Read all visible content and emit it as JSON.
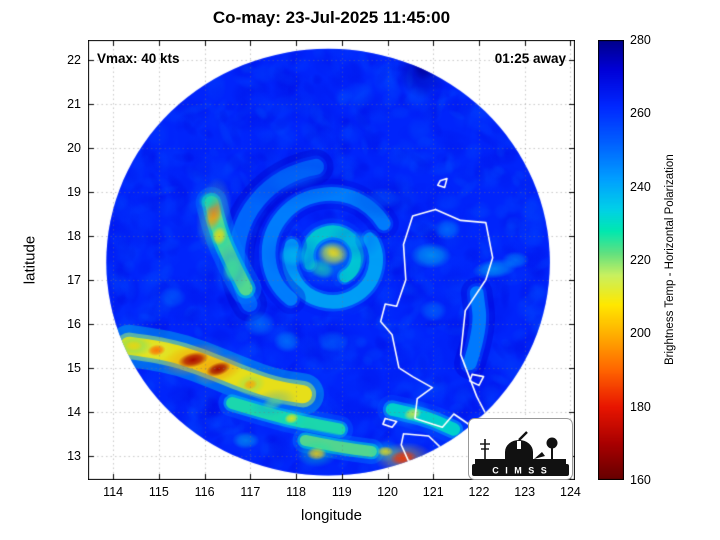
{
  "title": "Co-may: 23-Jul-2025 11:45:00",
  "annotations": {
    "vmax": "Vmax: 40 kts",
    "eta": "01:25 away"
  },
  "axes": {
    "xlabel": "longitude",
    "ylabel": "latitude",
    "xticks": [
      114,
      115,
      116,
      117,
      118,
      119,
      120,
      121,
      122,
      123,
      124
    ],
    "yticks": [
      13,
      14,
      15,
      16,
      17,
      18,
      19,
      20,
      21,
      22
    ],
    "xlim": [
      113.45,
      124.1
    ],
    "ylim": [
      12.45,
      22.45
    ]
  },
  "colorbar": {
    "label": "Brightness Temp - Horizontal Polarization",
    "ticks": [
      160,
      180,
      200,
      220,
      240,
      260,
      280
    ],
    "min": 160,
    "max": 280
  },
  "colormap": [
    [
      160,
      "#650000"
    ],
    [
      170,
      "#a80000"
    ],
    [
      180,
      "#e81500"
    ],
    [
      190,
      "#ff6400"
    ],
    [
      200,
      "#ffb000"
    ],
    [
      208,
      "#ffe800"
    ],
    [
      216,
      "#c8f060"
    ],
    [
      222,
      "#60e080"
    ],
    [
      228,
      "#00e8b0"
    ],
    [
      234,
      "#00d0e8"
    ],
    [
      242,
      "#00a0ff"
    ],
    [
      252,
      "#0060ff"
    ],
    [
      262,
      "#0028ff"
    ],
    [
      272,
      "#0000d8"
    ],
    [
      280,
      "#00008b"
    ]
  ],
  "logo": {
    "text": "C I M S S"
  },
  "chart_data": {
    "type": "heatmap",
    "title": "Co-may: 23-Jul-2025 11:45:00",
    "units": "Brightness Temp (K), Horizontal Polarization",
    "value_range": [
      160,
      280
    ],
    "background_temp_k": 263,
    "swath": {
      "center": [
        118.7,
        17.4
      ],
      "radius_deg": 4.85
    },
    "storm_center": {
      "lon": 118.8,
      "lat": 17.6,
      "vmax_kts": 40
    },
    "features": {
      "arcs": [
        [
          118.8,
          17.55,
          0.55,
          -200,
          60,
          0.26,
          230
        ],
        [
          118.8,
          17.45,
          0.95,
          -30,
          200,
          0.3,
          238
        ],
        [
          118.75,
          17.6,
          1.35,
          130,
          330,
          0.3,
          244
        ],
        [
          118.8,
          17.5,
          2.1,
          150,
          260,
          0.35,
          248
        ]
      ],
      "bands": [
        {
          "pts": [
            [
              116.15,
              18.75
            ],
            [
              116.3,
              18.1
            ],
            [
              116.6,
              17.4
            ],
            [
              116.9,
              16.8
            ]
          ],
          "w": 0.3,
          "t": 222
        },
        {
          "pts": [
            [
              114.35,
              15.5
            ],
            [
              115.1,
              15.4
            ],
            [
              115.9,
              15.15
            ],
            [
              116.7,
              14.8
            ],
            [
              117.5,
              14.5
            ],
            [
              118.15,
              14.4
            ]
          ],
          "w": 0.4,
          "t": 208
        },
        {
          "pts": [
            [
              116.6,
              14.2
            ],
            [
              117.4,
              13.95
            ],
            [
              118.2,
              13.75
            ],
            [
              118.95,
              13.6
            ]
          ],
          "w": 0.26,
          "t": 226
        },
        {
          "pts": [
            [
              118.2,
              13.35
            ],
            [
              118.9,
              13.2
            ],
            [
              119.65,
              13.1
            ]
          ],
          "w": 0.24,
          "t": 222
        },
        {
          "pts": [
            [
              120.1,
              14.05
            ],
            [
              120.8,
              13.9
            ],
            [
              121.45,
              13.6
            ]
          ],
          "w": 0.28,
          "t": 230
        },
        {
          "pts": [
            [
              121.8,
              15.1
            ],
            [
              122.05,
              15.9
            ],
            [
              121.95,
              16.7
            ]
          ],
          "w": 0.3,
          "t": 246
        }
      ],
      "blobs": [
        [
          118.82,
          17.62,
          0.16,
          0.13,
          0,
          194,
          0.95
        ],
        [
          118.8,
          17.58,
          0.34,
          0.28,
          0,
          210,
          0.75
        ],
        [
          118.55,
          17.25,
          0.3,
          0.22,
          20,
          226,
          0.6
        ],
        [
          117.95,
          17.55,
          0.35,
          0.25,
          0,
          234,
          0.55
        ],
        [
          119.3,
          17.9,
          0.3,
          0.22,
          0,
          236,
          0.5
        ],
        [
          116.2,
          18.5,
          0.18,
          0.4,
          8,
          196,
          0.9
        ],
        [
          116.32,
          18.0,
          0.16,
          0.22,
          10,
          206,
          0.8
        ],
        [
          116.6,
          17.25,
          0.2,
          0.3,
          15,
          224,
          0.7
        ],
        [
          116.1,
          18.8,
          0.25,
          0.2,
          0,
          228,
          0.6
        ],
        [
          115.75,
          15.18,
          0.34,
          0.17,
          -12,
          170,
          0.95
        ],
        [
          116.3,
          14.97,
          0.28,
          0.15,
          -18,
          168,
          0.95
        ],
        [
          114.95,
          15.4,
          0.2,
          0.13,
          -8,
          190,
          0.85
        ],
        [
          117.0,
          14.62,
          0.16,
          0.12,
          -15,
          198,
          0.8
        ],
        [
          114.45,
          15.5,
          0.2,
          0.12,
          0,
          205,
          0.7
        ],
        [
          117.9,
          13.85,
          0.16,
          0.12,
          -10,
          208,
          0.8
        ],
        [
          118.45,
          13.05,
          0.22,
          0.15,
          0,
          204,
          0.8
        ],
        [
          119.95,
          13.1,
          0.18,
          0.12,
          0,
          208,
          0.75
        ],
        [
          120.35,
          12.95,
          0.3,
          0.17,
          -5,
          184,
          0.9
        ],
        [
          120.55,
          13.95,
          0.2,
          0.14,
          -15,
          212,
          0.75
        ],
        [
          120.95,
          17.55,
          0.45,
          0.3,
          0,
          236,
          0.6
        ],
        [
          122.35,
          17.25,
          0.5,
          0.22,
          -8,
          238,
          0.65
        ],
        [
          121.3,
          18.15,
          0.3,
          0.25,
          0,
          242,
          0.5
        ],
        [
          122.8,
          17.45,
          0.3,
          0.2,
          0,
          240,
          0.5
        ],
        [
          121.0,
          16.3,
          0.3,
          0.25,
          0,
          244,
          0.45
        ],
        [
          118.0,
          19.3,
          0.7,
          0.3,
          -8,
          248,
          0.4
        ],
        [
          119.9,
          18.85,
          0.4,
          0.25,
          0,
          250,
          0.4
        ],
        [
          117.2,
          16.0,
          0.35,
          0.3,
          0,
          242,
          0.45
        ],
        [
          117.8,
          15.6,
          0.3,
          0.25,
          0,
          240,
          0.45
        ],
        [
          118.8,
          15.6,
          0.35,
          0.25,
          0,
          246,
          0.4
        ],
        [
          115.3,
          16.6,
          0.3,
          0.25,
          0,
          246,
          0.4
        ],
        [
          120.8,
          21.9,
          0.28,
          0.38,
          0,
          278,
          0.9
        ],
        [
          116.9,
          13.35,
          0.3,
          0.2,
          0,
          235,
          0.5
        ],
        [
          117.5,
          14.2,
          0.25,
          0.15,
          -15,
          222,
          0.6
        ]
      ]
    },
    "coastlines": [
      [
        [
          121.05,
          18.6
        ],
        [
          120.55,
          18.45
        ],
        [
          120.35,
          17.8
        ],
        [
          120.4,
          17.0
        ],
        [
          120.2,
          16.4
        ],
        [
          119.95,
          16.45
        ],
        [
          119.85,
          16.05
        ],
        [
          120.1,
          15.75
        ],
        [
          120.25,
          15.0
        ],
        [
          120.55,
          14.8
        ],
        [
          120.98,
          14.55
        ],
        [
          120.65,
          14.3
        ],
        [
          120.6,
          13.85
        ],
        [
          121.2,
          13.65
        ],
        [
          121.45,
          13.95
        ],
        [
          121.8,
          13.7
        ],
        [
          122.15,
          13.95
        ],
        [
          121.95,
          14.35
        ],
        [
          121.6,
          15.3
        ],
        [
          121.7,
          16.3
        ],
        [
          122.15,
          17.0
        ],
        [
          122.3,
          17.5
        ],
        [
          122.15,
          18.3
        ],
        [
          121.6,
          18.35
        ],
        [
          121.05,
          18.6
        ]
      ],
      [
        [
          120.35,
          13.5
        ],
        [
          120.9,
          13.45
        ],
        [
          121.25,
          13.1
        ],
        [
          120.95,
          12.75
        ],
        [
          120.45,
          12.9
        ],
        [
          120.3,
          13.25
        ],
        [
          120.35,
          13.5
        ]
      ],
      [
        [
          119.95,
          13.85
        ],
        [
          120.2,
          13.78
        ],
        [
          120.1,
          13.65
        ],
        [
          119.9,
          13.72
        ],
        [
          119.95,
          13.85
        ]
      ],
      [
        [
          121.85,
          14.85
        ],
        [
          122.1,
          14.8
        ],
        [
          122.0,
          14.6
        ],
        [
          121.8,
          14.7
        ],
        [
          121.85,
          14.85
        ]
      ],
      [
        [
          121.15,
          19.25
        ],
        [
          121.3,
          19.3
        ],
        [
          121.25,
          19.1
        ],
        [
          121.1,
          19.15
        ],
        [
          121.15,
          19.25
        ]
      ]
    ]
  }
}
